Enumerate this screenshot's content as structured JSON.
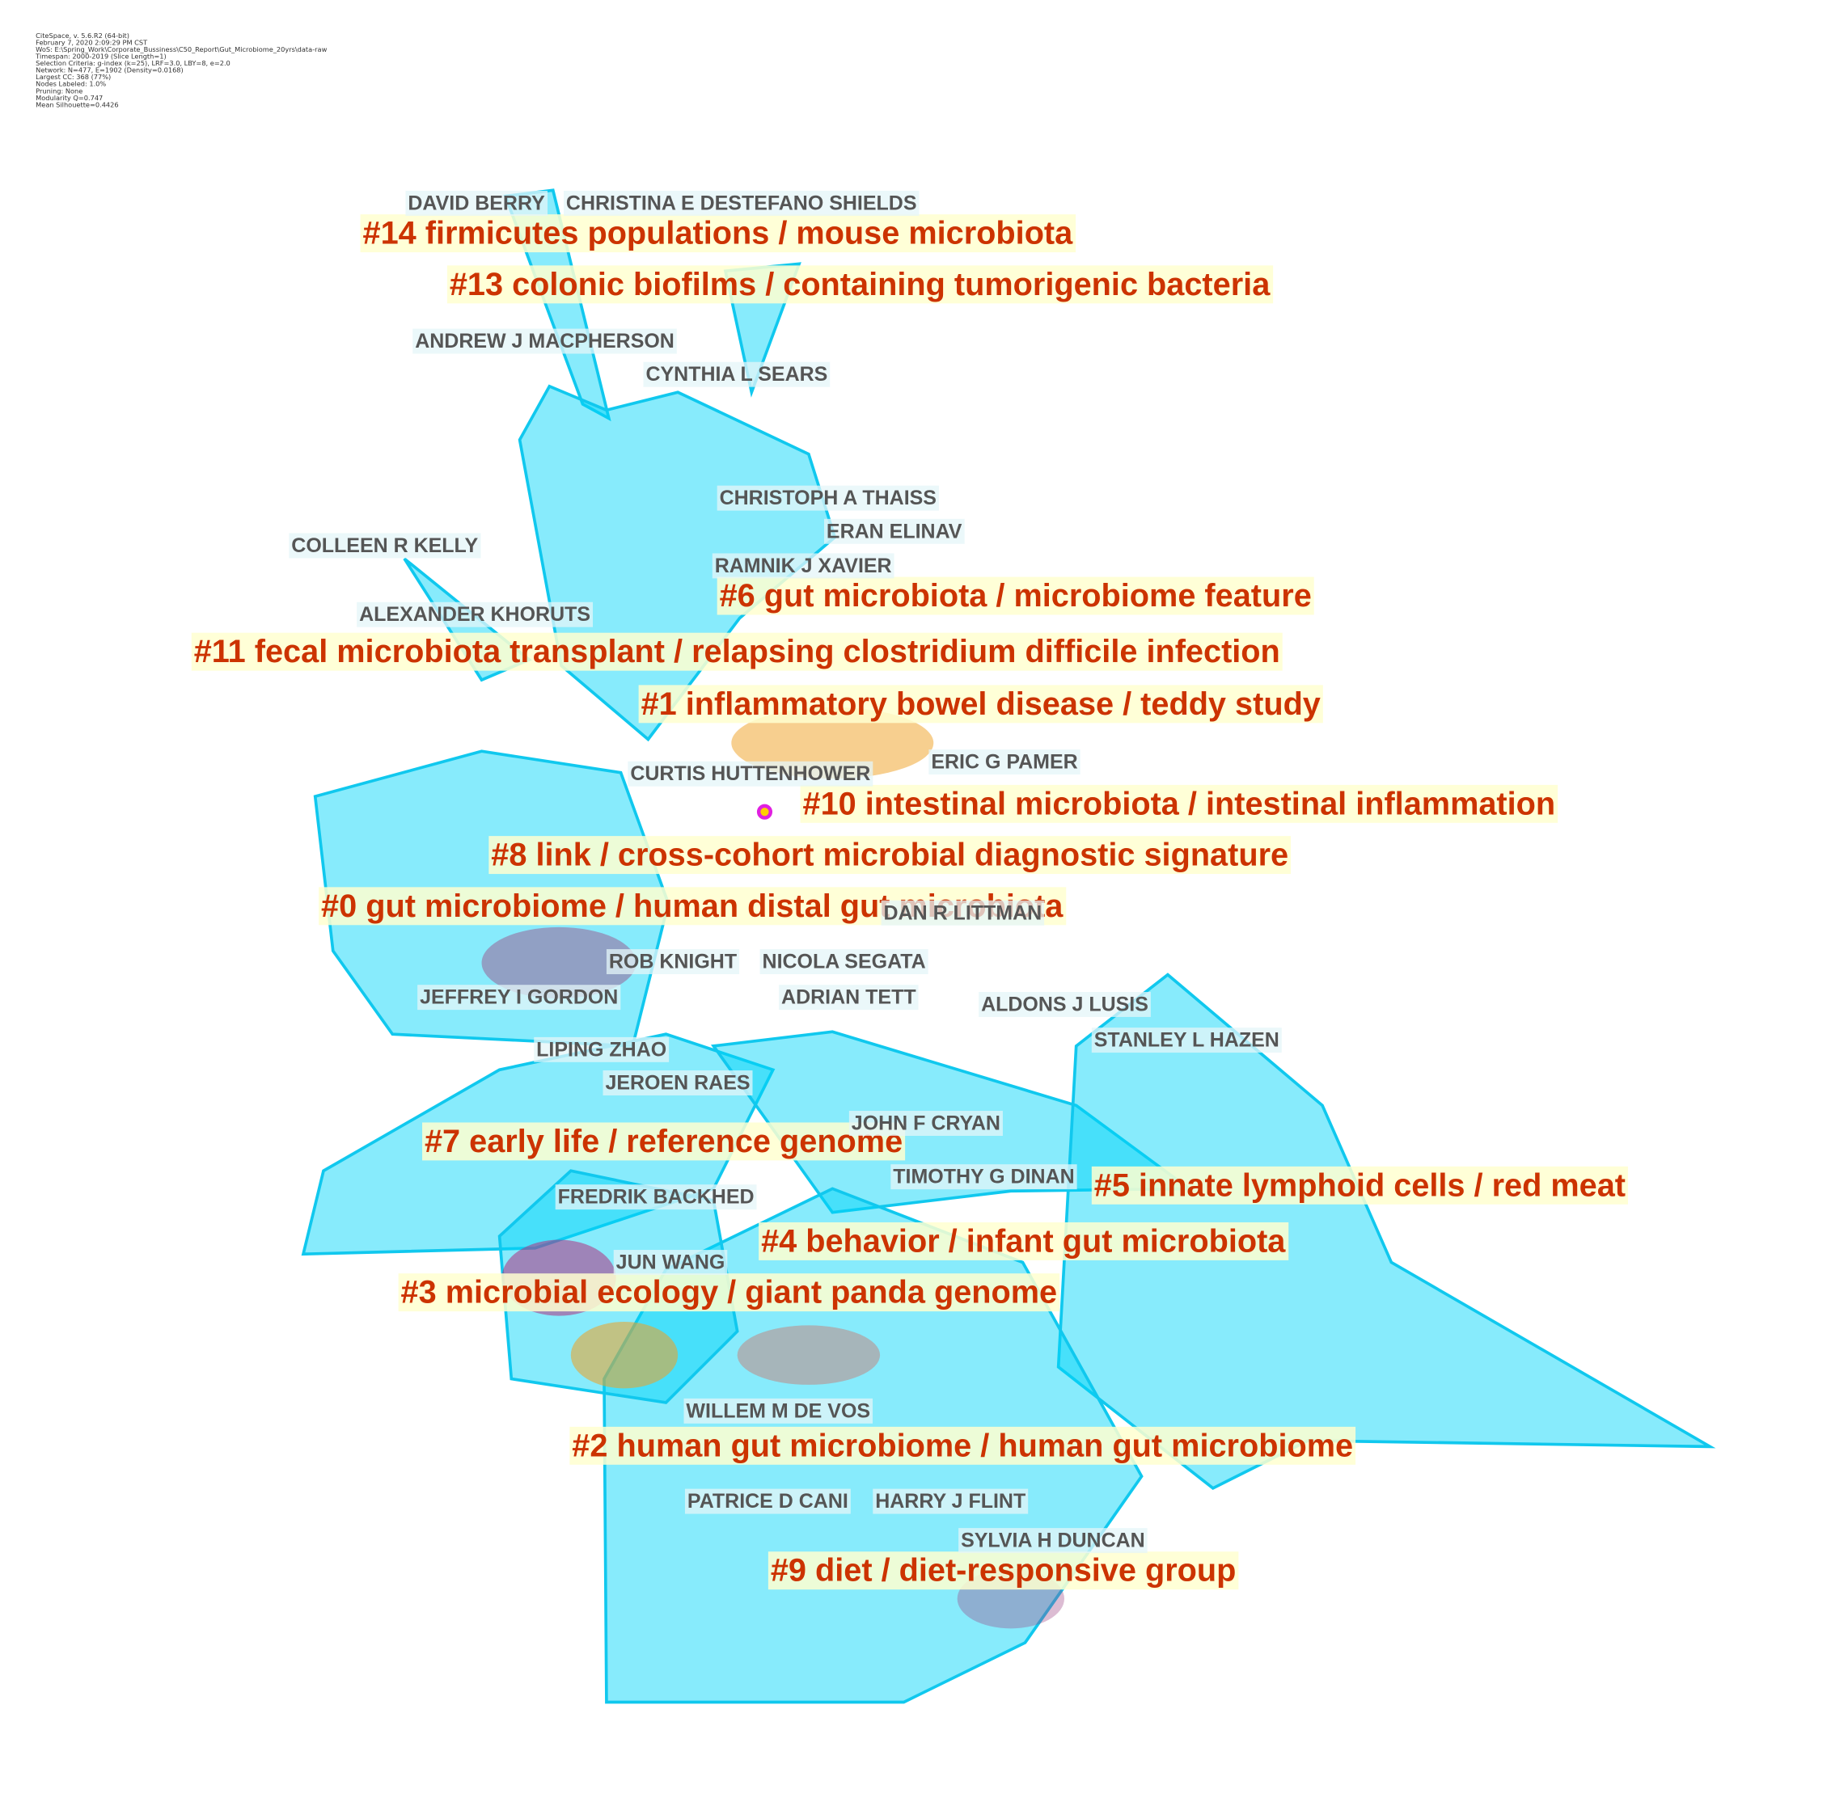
{
  "header": {
    "lines": [
      "CiteSpace, v. 5.6.R2 (64-bit)",
      "February 7, 2020 2:09:29 PM CST",
      "WoS: E:\\Spring_Work\\Corporate_Bussiness\\C50_Report\\Gut_Microbiome_20yrs\\data-raw",
      "Timespan: 2000-2019 (Slice Length=1)",
      "Selection Criteria: g-index (k=25), LRF=3.0, LBY=8, e=2.0",
      "Network: N=477, E=1902 (Density=0.0168)",
      "Largest CC: 368 (77%)",
      "Nodes Labeled: 1.0%",
      "Pruning: None",
      "Modularity Q=0.747",
      "Mean Silhouette=0.4426"
    ]
  },
  "clusters": [
    "#14 firmicutes populations / mouse microbiota",
    "#13 colonic biofilms / containing tumorigenic bacteria",
    "#6 gut microbiota / microbiome feature",
    "#11 fecal microbiota transplant / relapsing clostridium difficile infection",
    "#1 inflammatory bowel disease / teddy study",
    "#10 intestinal microbiota / intestinal inflammation",
    "#8 link / cross-cohort microbial diagnostic signature",
    "#0 gut microbiome / human distal gut microbiota",
    "#7 early life / reference genome",
    "#5 innate lymphoid cells / red meat",
    "#4 behavior / infant gut microbiota",
    "#3 microbial ecology / giant panda genome",
    "#2 human gut microbiome / human gut microbiome",
    "#9 diet / diet-responsive group"
  ],
  "authors": [
    "DAVID BERRY",
    "CHRISTINA E DESTEFANO SHIELDS",
    "ANDREW J MACPHERSON",
    "CYNTHIA L SEARS",
    "CHRISTOPH A THAISS",
    "ERAN ELINAV",
    "COLLEEN R KELLY",
    "RAMNIK J XAVIER",
    "ALEXANDER KHORUTS",
    "ERIC G PAMER",
    "CURTIS HUTTENHOWER",
    "DAN R LITTMAN",
    "ROB KNIGHT",
    "NICOLA SEGATA",
    "JEFFREY I GORDON",
    "ADRIAN TETT",
    "ALDONS J LUSIS",
    "STANLEY L HAZEN",
    "LIPING ZHAO",
    "JEROEN RAES",
    "JOHN F CRYAN",
    "TIMOTHY G DINAN",
    "FREDRIK BACKHED",
    "JUN WANG",
    "WILLEM M DE VOS",
    "PATRICE D CANI",
    "HARRY J FLINT",
    "SYLVIA H DUNCAN"
  ]
}
